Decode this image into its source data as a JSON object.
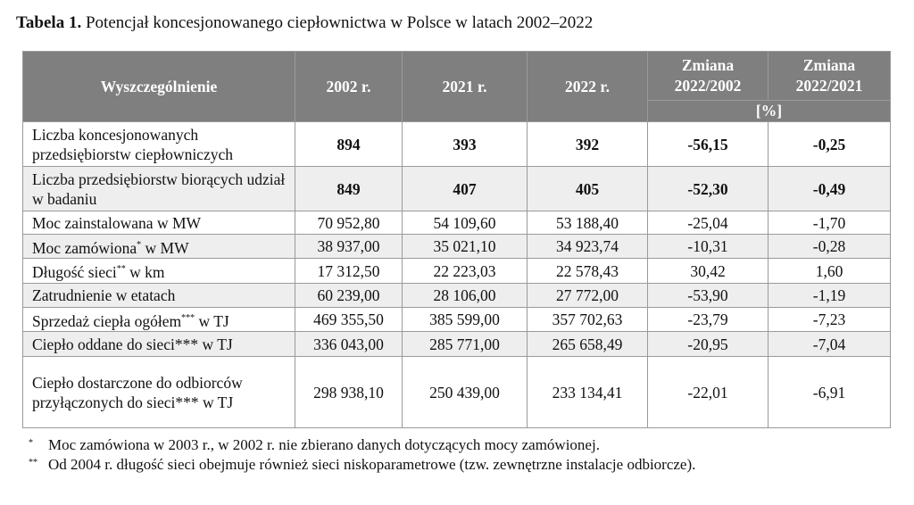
{
  "title": {
    "bold": "Tabela 1.",
    "text": "Potencjał koncesjonowanego ciepłownictwa w Polsce w latach 2002–2022"
  },
  "table": {
    "header": [
      "Wyszczególnienie",
      "2002 r.",
      "2021 r.",
      "2022 r.",
      "Zmiana\n2022/2002",
      "Zmiana\n2022/2021"
    ],
    "unit": "[%]",
    "rows": [
      {
        "label": [
          "Liczba koncesjonowanych przedsiębiorstw ciepłowniczych"
        ],
        "cells": [
          "894",
          "393",
          "392",
          "-56,15",
          "-0,25"
        ],
        "bold": true
      },
      {
        "label": [
          "Liczba przedsiębiorstw biorących udział w badaniu"
        ],
        "cells": [
          "849",
          "407",
          "405",
          "-52,30",
          "-0,49"
        ],
        "bold": true
      },
      {
        "label": [
          "Moc zainstalowana w MW"
        ],
        "cells": [
          "70 952,80",
          "54 109,60",
          "53 188,40",
          "-25,04",
          "-1,70"
        ],
        "bold": false
      },
      {
        "label": [
          "Moc zamówiona",
          "*",
          " w MW"
        ],
        "cells": [
          "38 937,00",
          "35 021,10",
          "34 923,74",
          "-10,31",
          "-0,28"
        ],
        "bold": false
      },
      {
        "label": [
          "Długość sieci",
          "**",
          " w km"
        ],
        "cells": [
          "17 312,50",
          "22 223,03",
          "22 578,43",
          "30,42",
          "1,60"
        ],
        "bold": false
      },
      {
        "label": [
          "Zatrudnienie w etatach"
        ],
        "cells": [
          "60 239,00",
          "28 106,00",
          "27 772,00",
          "-53,90",
          "-1,19"
        ],
        "bold": false
      },
      {
        "label": [
          "Sprzedaż ciepła ogółem",
          "***",
          " w TJ"
        ],
        "cells": [
          "469 355,50",
          "385 599,00",
          "357 702,63",
          "-23,79",
          "-7,23"
        ],
        "bold": false
      },
      {
        "label": [
          "Ciepło oddane do sieci*** w TJ"
        ],
        "cells": [
          "336 043,00",
          "285 771,00",
          "265 658,49",
          "-20,95",
          "-7,04"
        ],
        "bold": false
      },
      {
        "label": [
          "Ciepło dostarczone do odbiorców przyłączonych do sieci*** w TJ"
        ],
        "cells": [
          "298 938,10",
          "250 439,00",
          "233 134,41",
          "-22,01",
          "-6,91"
        ],
        "bold": false
      }
    ]
  },
  "notes": [
    {
      "mark": "*",
      "text": "Moc zamówiona w 2003 r., w 2002 r. nie zbierano danych dotyczących mocy zamówionej."
    },
    {
      "mark": "**",
      "text": "Od 2004 r. długość sieci obejmuje również sieci niskoparametrowe (tzw. zewnętrzne instalacje odbiorcze)."
    }
  ]
}
